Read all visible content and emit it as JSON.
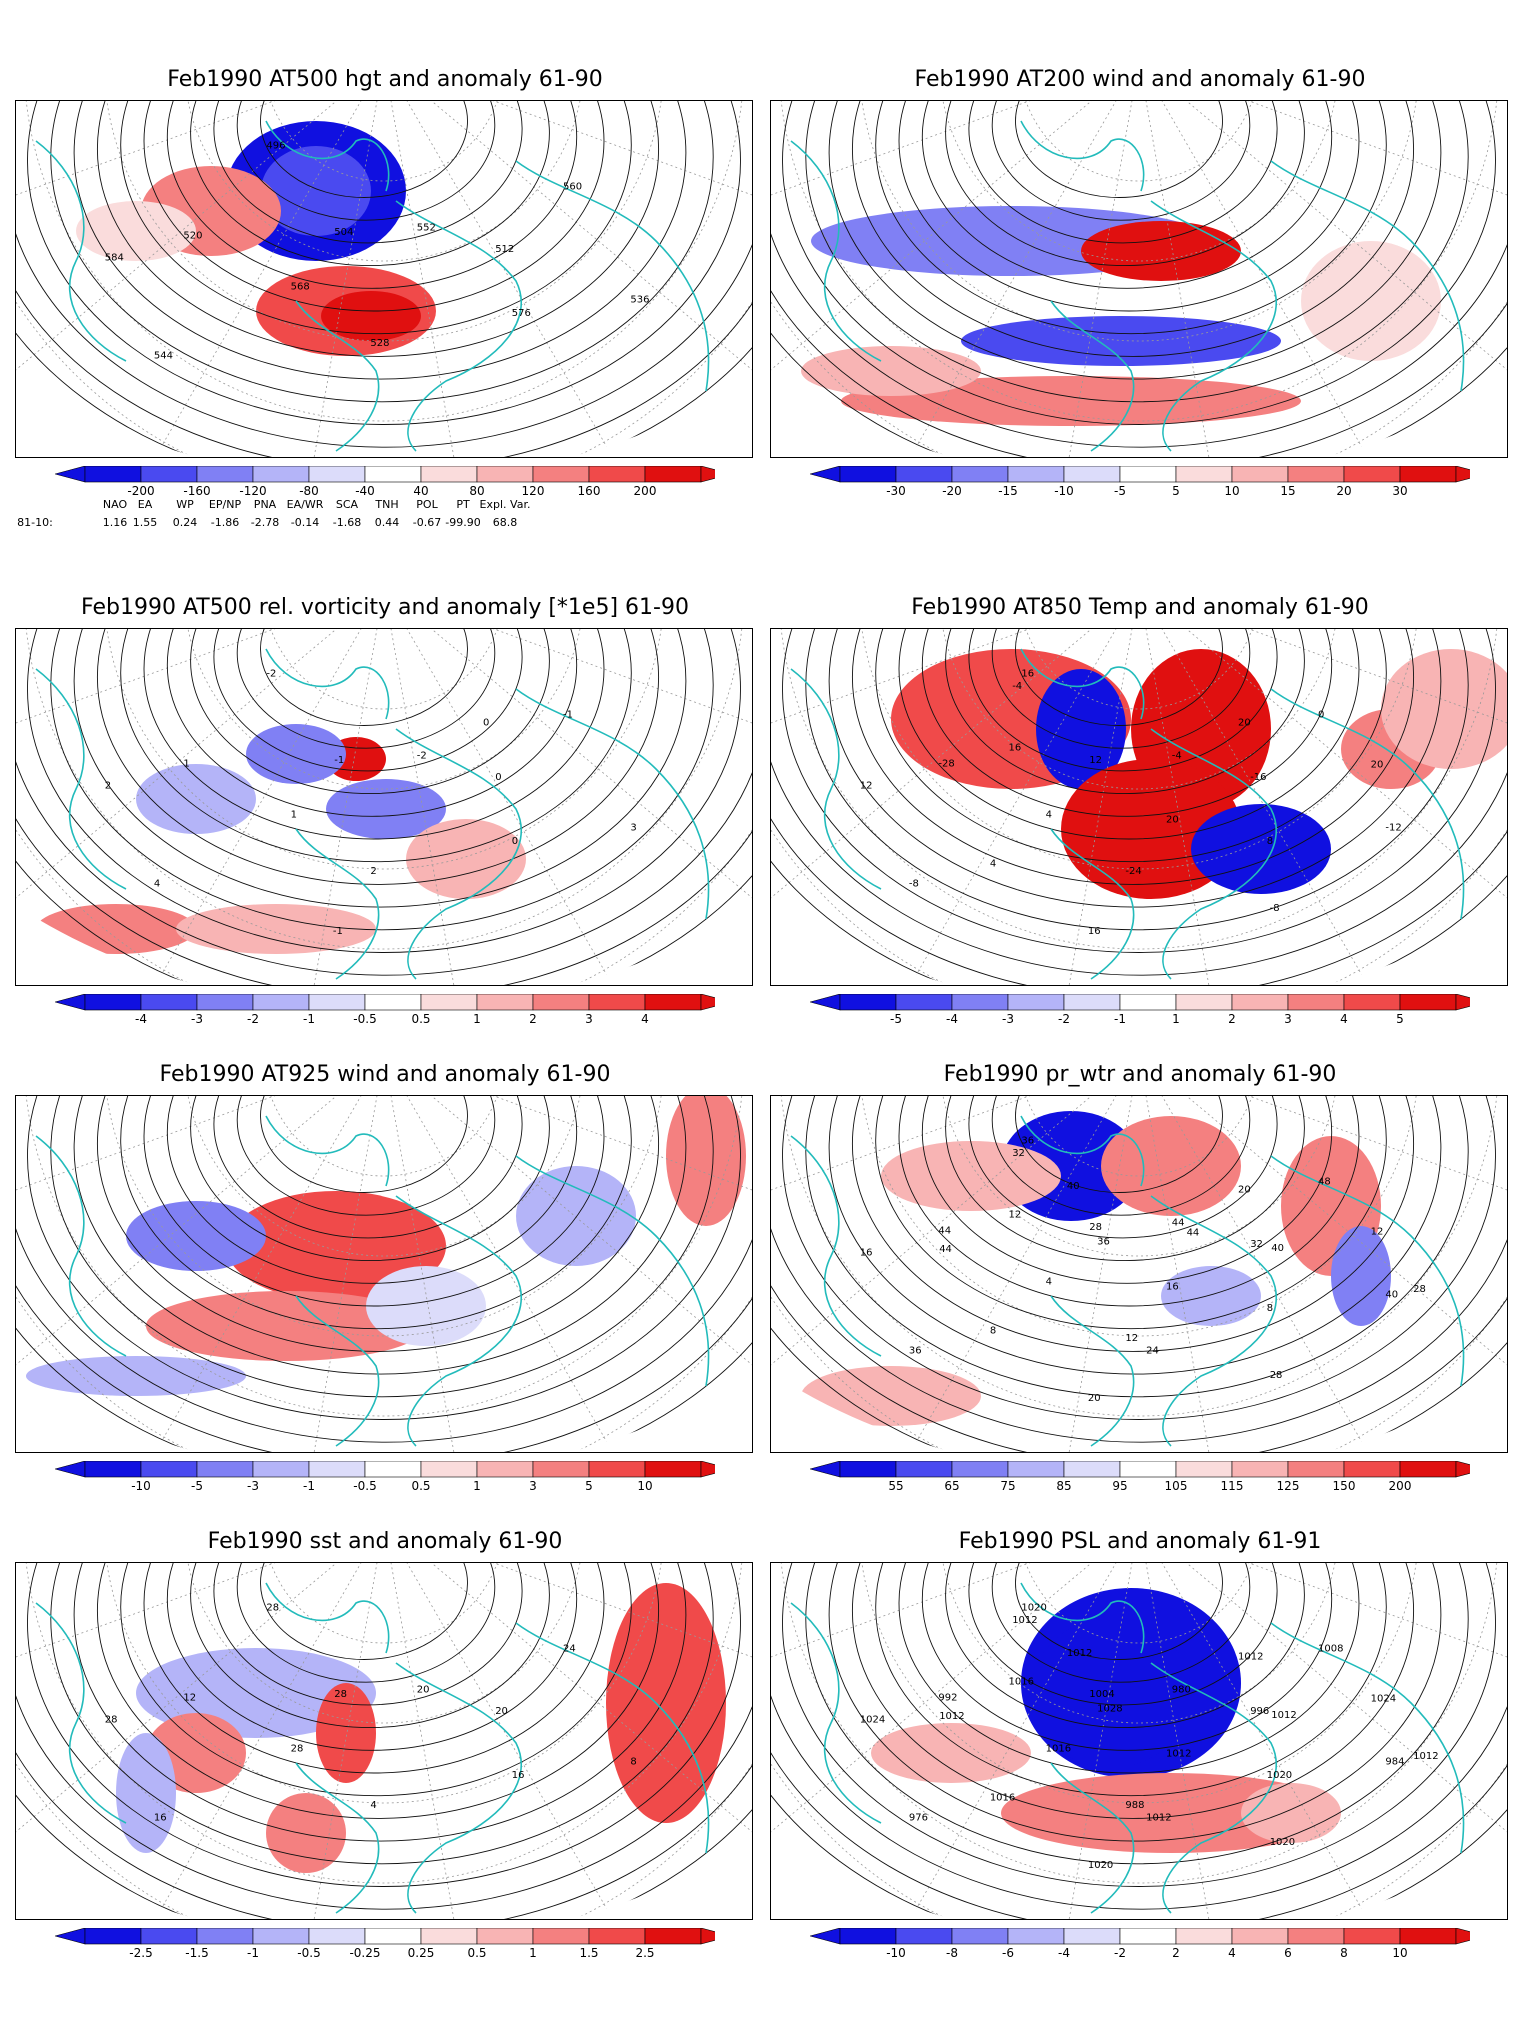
{
  "panels": [
    {
      "title": "Feb1990 AT500 hgt and anomaly 61-90",
      "colorbar": [
        "-200",
        "-160",
        "-120",
        "-80",
        "-40",
        "40",
        "80",
        "120",
        "160",
        "200"
      ],
      "contour_labels": [
        "496",
        "504",
        "512",
        "520",
        "528",
        "536",
        "544",
        "552",
        "560",
        "568",
        "576",
        "584"
      ]
    },
    {
      "title": "Feb1990 AT200 wind and anomaly 61-90",
      "colorbar": [
        "-30",
        "-20",
        "-15",
        "-10",
        "-5",
        "5",
        "10",
        "15",
        "20",
        "30"
      ],
      "contour_labels": []
    },
    {
      "title": "Feb1990 AT500 rel. vorticity and anomaly [*1e5] 61-90",
      "colorbar": [
        "-4",
        "-3",
        "-2",
        "-1",
        "-0.5",
        "0.5",
        "1",
        "2",
        "3",
        "4"
      ],
      "contour_labels": [
        "-2",
        "-1",
        "0",
        "1",
        "2",
        "3",
        "4",
        "-2",
        "-1",
        "1",
        "0",
        "2",
        "-1",
        "0"
      ]
    },
    {
      "title": "Feb1990 AT850 Temp and anomaly 61-90",
      "colorbar": [
        "-5",
        "-4",
        "-3",
        "-2",
        "-1",
        "1",
        "2",
        "3",
        "4",
        "5"
      ],
      "contour_labels": [
        "16",
        "12",
        "-16",
        "-28",
        "-24",
        "-12",
        "-8",
        "-4",
        "0",
        "4",
        "8",
        "12",
        "16",
        "20",
        "16",
        "20",
        "20",
        "4",
        "-8",
        "-4"
      ]
    },
    {
      "title": "Feb1990 AT925 wind and anomaly 61-90",
      "colorbar": [
        "-10",
        "-5",
        "-3",
        "-1",
        "-0.5",
        "0.5",
        "1",
        "3",
        "5",
        "10"
      ],
      "contour_labels": []
    },
    {
      "title": "Feb1990 pr_wtr and anomaly 61-90",
      "colorbar": [
        "55",
        "65",
        "75",
        "85",
        "95",
        "105",
        "115",
        "125",
        "150",
        "200"
      ],
      "contour_labels": [
        "36",
        "28",
        "32",
        "44",
        "12",
        "40",
        "36",
        "44",
        "48",
        "4",
        "8",
        "16",
        "20",
        "20",
        "12",
        "16",
        "12",
        "8",
        "28",
        "32",
        "36",
        "40",
        "44",
        "24",
        "28",
        "40",
        "44"
      ]
    },
    {
      "title": "Feb1990 sst and anomaly 61-90",
      "colorbar": [
        "-2.5",
        "-1.5",
        "-1",
        "-0.5",
        "-0.25",
        "0.25",
        "0.5",
        "1",
        "1.5",
        "2.5"
      ],
      "contour_labels": [
        "28",
        "28",
        "20",
        "12",
        "4",
        "8",
        "16",
        "20",
        "24",
        "28",
        "16",
        "28"
      ]
    },
    {
      "title": "Feb1990 PSL and anomaly 61-91",
      "colorbar": [
        "-10",
        "-8",
        "-6",
        "-4",
        "-2",
        "2",
        "4",
        "6",
        "8",
        "10"
      ],
      "contour_labels": [
        "1020",
        "1004",
        "996",
        "992",
        "988",
        "984",
        "976",
        "980",
        "1008",
        "1016",
        "1020",
        "1024",
        "1020",
        "1012",
        "1016",
        "1012",
        "1024",
        "1016",
        "1020",
        "1012",
        "1028",
        "1012",
        "1012",
        "1012",
        "1012",
        "1012"
      ]
    }
  ],
  "indices": {
    "headers": [
      "NAO",
      "EA",
      "WP",
      "EP/NP",
      "PNA",
      "EA/WR",
      "SCA",
      "TNH",
      "POL",
      "PT",
      "Expl. Var."
    ],
    "row_label": "81-10:",
    "values": [
      "1.16",
      "1.55",
      "0.24",
      "-1.86",
      "-2.78",
      "-0.14",
      "-1.68",
      "0.44",
      "-0.67",
      "-99.90",
      "68.8"
    ]
  },
  "colors": {
    "coast": "#22bbbb",
    "cold": [
      "#1010e0",
      "#4a4af0",
      "#8080f4",
      "#b4b4f8",
      "#dcdcfa"
    ],
    "warm": [
      "#fadcdc",
      "#f8b4b4",
      "#f48080",
      "#f04a4a",
      "#e01010"
    ]
  }
}
